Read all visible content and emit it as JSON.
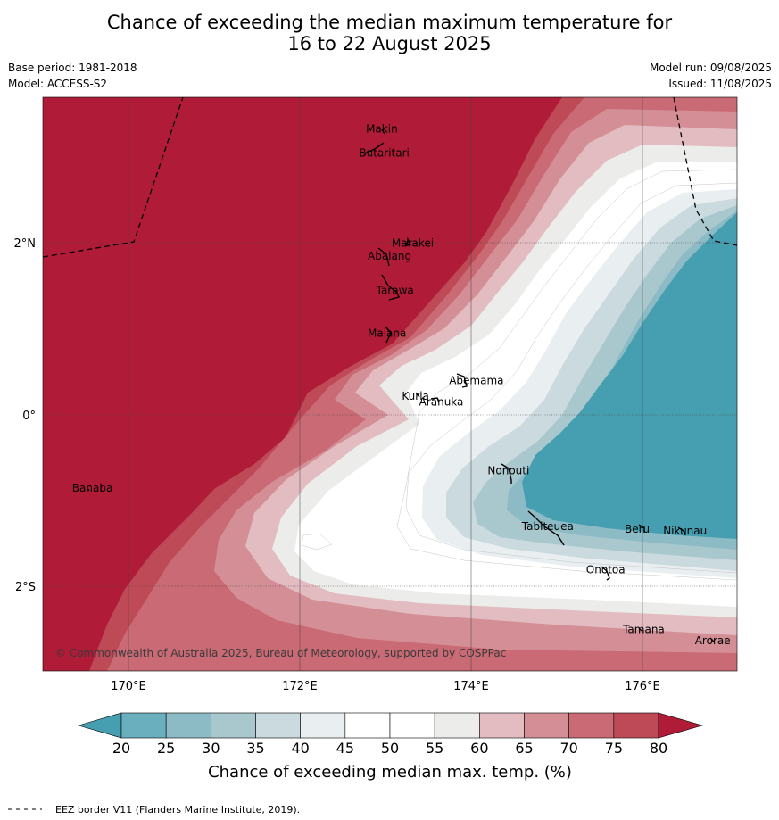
{
  "header": {
    "title_line1": "Chance of exceeding the median maximum temperature for",
    "title_line2": "16 to 22 August 2025",
    "base_period": "Base period: 1981-2018",
    "model": "Model: ACCESS-S2",
    "model_run": "Model run: 09/08/2025",
    "issued": "Issued: 11/08/2025"
  },
  "map": {
    "lon_ticks": [
      "170°E",
      "172°E",
      "174°E",
      "176°E"
    ],
    "lat_ticks": [
      "2°N",
      "0°",
      "2°S"
    ],
    "copyright": "© Commonwealth of Australia 2025, Bureau of Meteorology, supported by COSPPac",
    "places": [
      {
        "name": "Makin",
        "lon": 172.98,
        "lat": 3.33
      },
      {
        "name": "Butaritari",
        "lon": 172.9,
        "lat": 3.05
      },
      {
        "name": "Marakei",
        "lon": 173.28,
        "lat": 2.0
      },
      {
        "name": "Abaiang",
        "lon": 173.0,
        "lat": 1.85
      },
      {
        "name": "Tarawa",
        "lon": 173.1,
        "lat": 1.45
      },
      {
        "name": "Maiana",
        "lon": 173.0,
        "lat": 0.95
      },
      {
        "name": "Abemama",
        "lon": 173.95,
        "lat": 0.4
      },
      {
        "name": "Kuria",
        "lon": 173.4,
        "lat": 0.22
      },
      {
        "name": "Aranuka",
        "lon": 173.6,
        "lat": 0.15
      },
      {
        "name": "Nonouti",
        "lon": 174.4,
        "lat": -0.65
      },
      {
        "name": "Banaba",
        "lon": 169.55,
        "lat": -0.85
      },
      {
        "name": "Tabiteuea",
        "lon": 174.8,
        "lat": -1.3
      },
      {
        "name": "Beru",
        "lon": 176.0,
        "lat": -1.33
      },
      {
        "name": "Nikunau",
        "lon": 176.45,
        "lat": -1.35
      },
      {
        "name": "Onotoa",
        "lon": 175.55,
        "lat": -1.8
      },
      {
        "name": "Tamana",
        "lon": 175.98,
        "lat": -2.5
      },
      {
        "name": "Arorae",
        "lon": 176.82,
        "lat": -2.63
      }
    ]
  },
  "colorbar": {
    "title": "Chance of exceeding median max. temp. (%)",
    "ticks": [
      "20",
      "25",
      "30",
      "35",
      "40",
      "45",
      "50",
      "55",
      "60",
      "65",
      "70",
      "75",
      "80"
    ],
    "colors": {
      "below": "#469fb1",
      "bands": [
        "#6aafbd",
        "#8cbbc6",
        "#a9c8ce",
        "#cbdadf",
        "#e9eff1",
        "#ffffff",
        "#ffffff",
        "#ececeb",
        "#e2bcc1",
        "#d48f96",
        "#ca6a74",
        "#bf4a57"
      ],
      "above": "#b01c37"
    }
  },
  "footer": {
    "legend_text": "EEZ border V11 (Flanders Marine Institute, 2019)."
  }
}
